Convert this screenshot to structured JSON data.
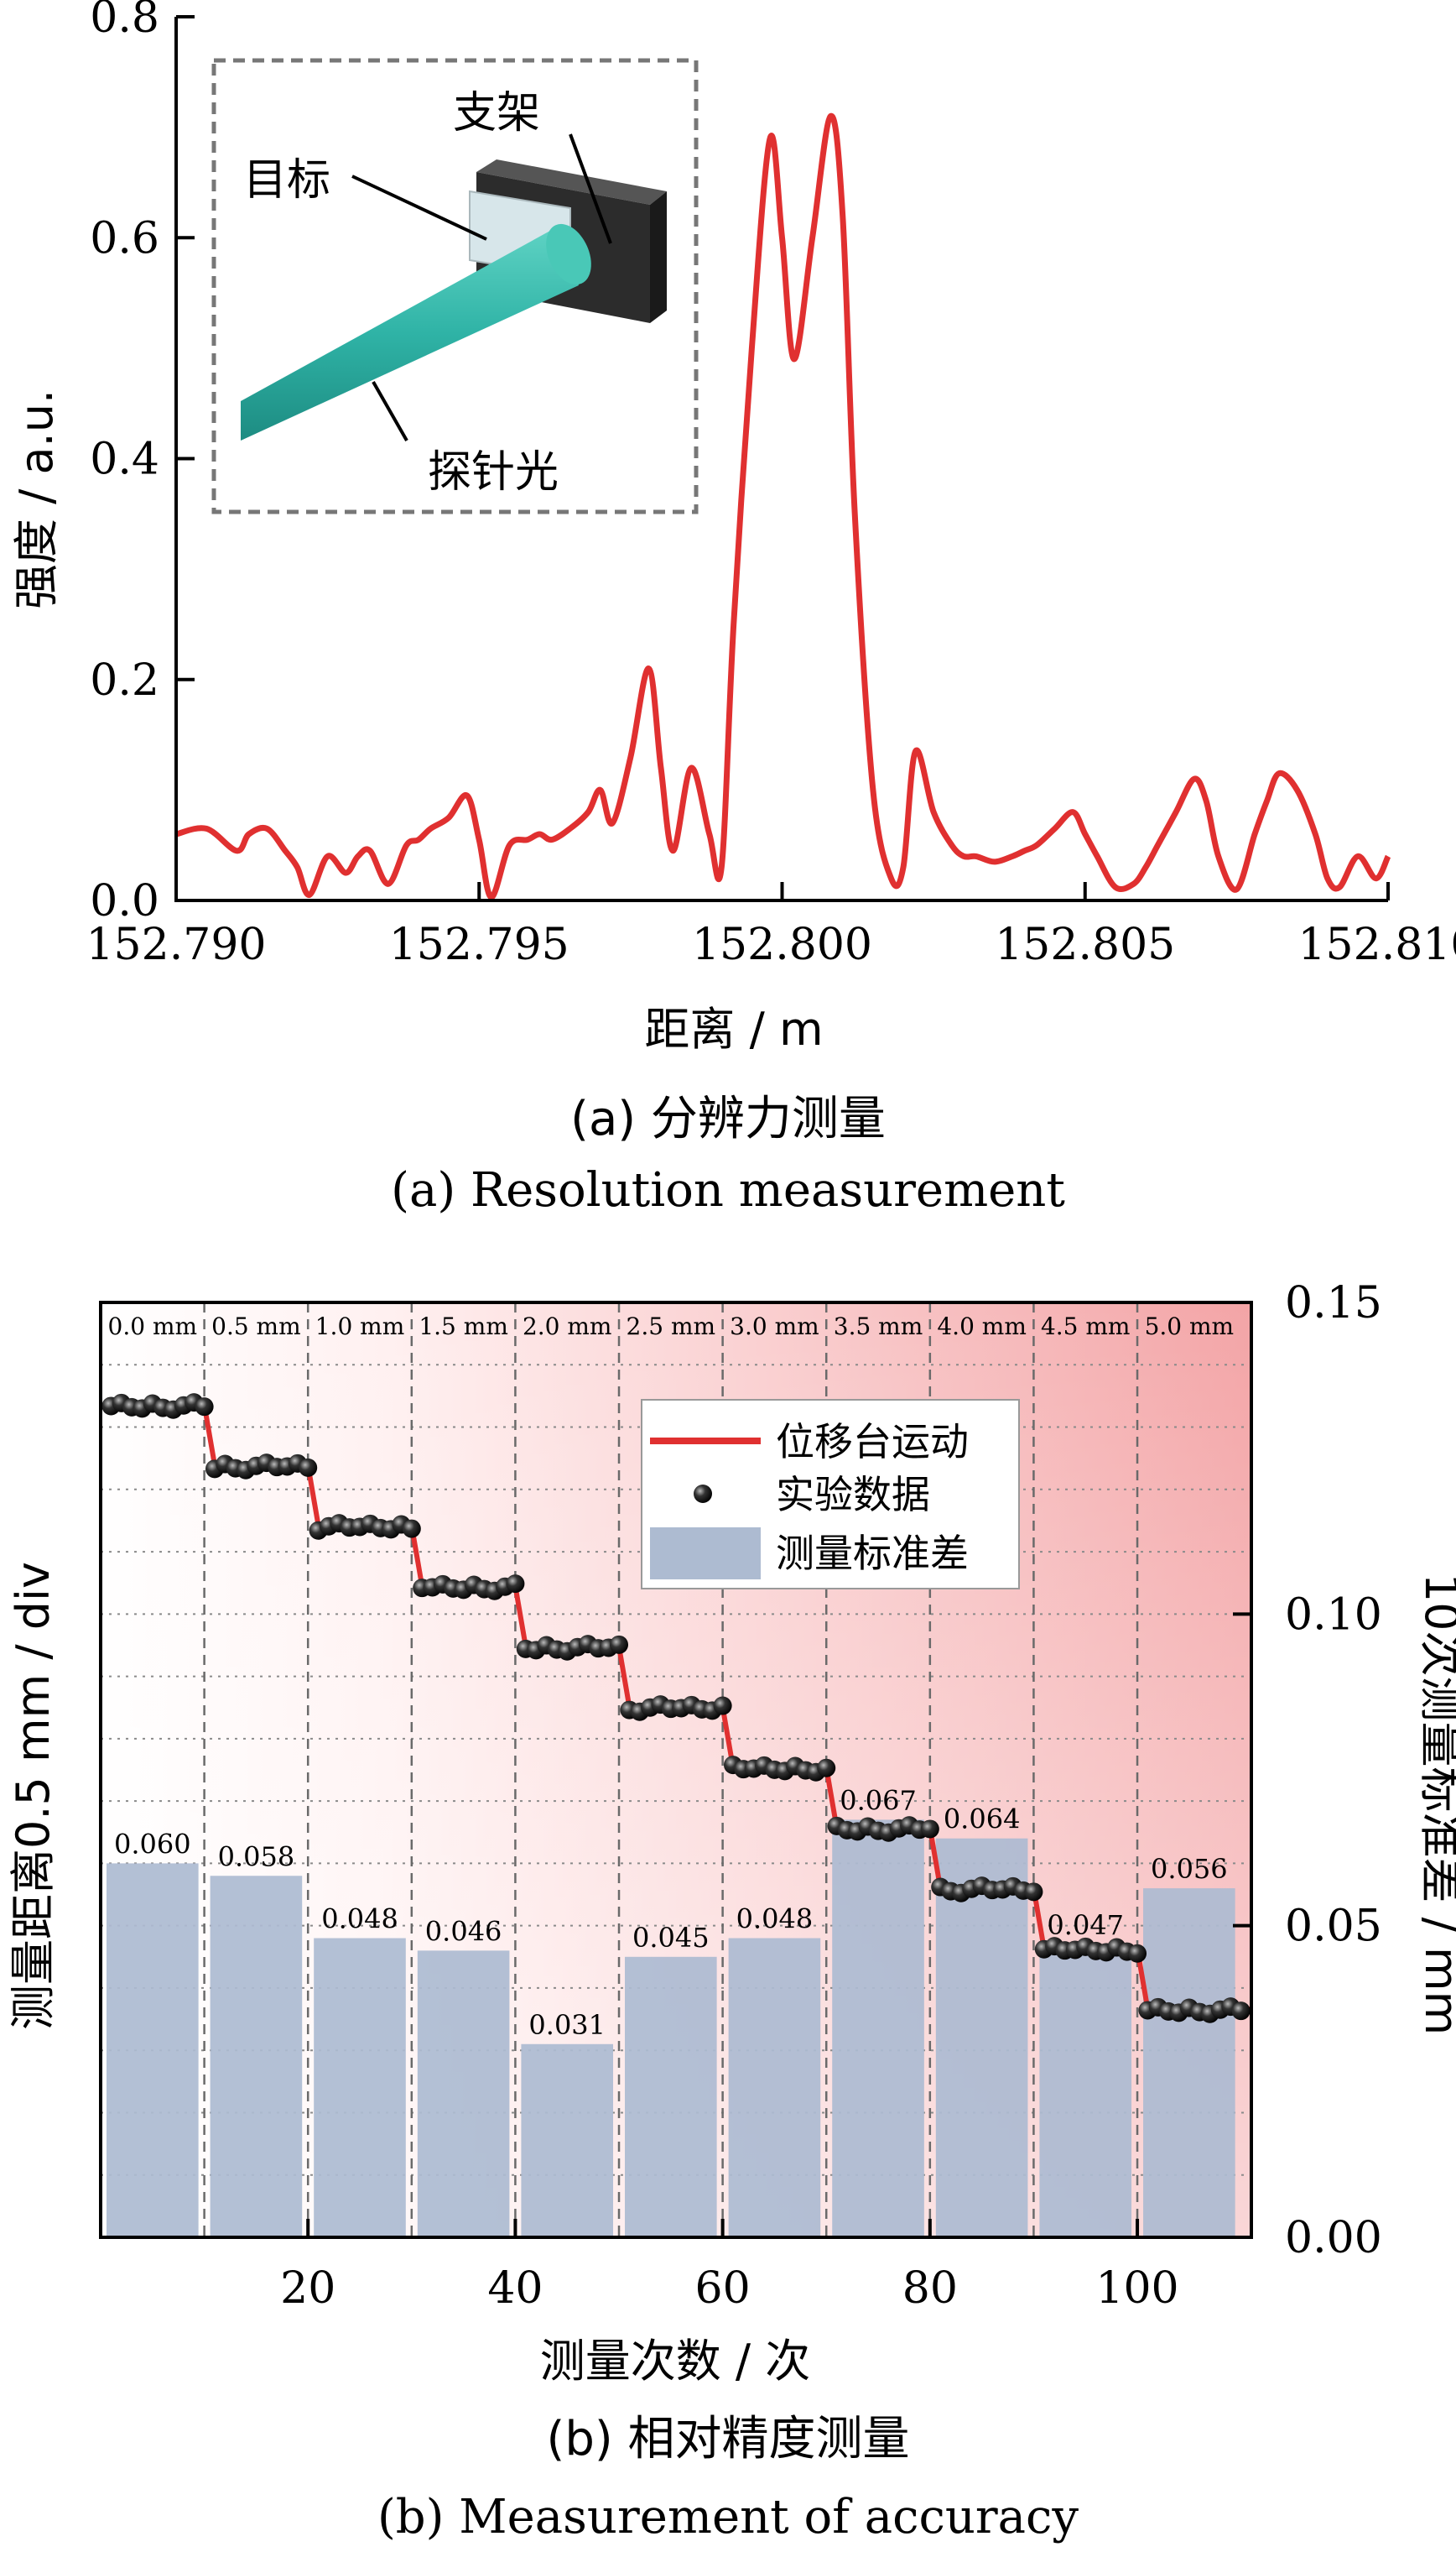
{
  "chart_data": [
    {
      "type": "line",
      "xlabel": "距离 / m",
      "ylabel": "强度 / a.u.",
      "xlim": [
        152.79,
        152.81
      ],
      "ylim": [
        0.0,
        0.8
      ],
      "xticks": [
        "152.790",
        "152.795",
        "152.800",
        "152.805",
        "152.810"
      ],
      "yticks": [
        "0.0",
        "0.2",
        "0.4",
        "0.6",
        "0.8"
      ],
      "caption_cn": "(a) 分辨力测量",
      "caption_en": "(a) Resolution measurement",
      "inset_labels": {
        "target": "目标",
        "bracket": "支架",
        "probe": "探针光"
      },
      "line_color": "#e03030",
      "series": [
        {
          "x": [
            152.79,
            152.7905,
            152.791,
            152.7912,
            152.7915,
            152.7918,
            152.792,
            152.7922,
            152.7925,
            152.7928,
            152.793,
            152.7932,
            152.7935,
            152.7938,
            152.794,
            152.7942,
            152.7945,
            152.7948,
            152.795,
            152.7952,
            152.7955,
            152.7958,
            152.796,
            152.7962,
            152.7965,
            152.7968,
            152.797,
            152.7972,
            152.7975,
            152.7978,
            152.798,
            152.7982,
            152.7985,
            152.7988,
            152.799,
            152.7992,
            152.7995,
            152.7998,
            152.8,
            152.8002,
            152.8005,
            152.8008,
            152.801,
            152.8012,
            152.8015,
            152.8018,
            152.802,
            152.8022,
            152.8025,
            152.8028,
            152.803,
            152.8032,
            152.8035,
            152.8038,
            152.804,
            152.8042,
            152.8045,
            152.8048,
            152.805,
            152.8052,
            152.8055,
            152.8058,
            152.806,
            152.8062,
            152.8065,
            152.8068,
            152.807,
            152.8072,
            152.8075,
            152.8078,
            152.808,
            152.8082,
            152.8085,
            152.8088,
            152.809,
            152.8092,
            152.8095,
            152.8098,
            152.81
          ],
          "values": [
            0.06,
            0.065,
            0.045,
            0.06,
            0.065,
            0.045,
            0.03,
            0.005,
            0.04,
            0.025,
            0.04,
            0.045,
            0.015,
            0.05,
            0.055,
            0.065,
            0.075,
            0.095,
            0.055,
            0.003,
            0.05,
            0.055,
            0.06,
            0.055,
            0.065,
            0.08,
            0.1,
            0.07,
            0.13,
            0.21,
            0.12,
            0.045,
            0.12,
            0.06,
            0.03,
            0.25,
            0.5,
            0.69,
            0.6,
            0.49,
            0.6,
            0.71,
            0.62,
            0.35,
            0.1,
            0.02,
            0.03,
            0.135,
            0.08,
            0.05,
            0.04,
            0.04,
            0.035,
            0.04,
            0.045,
            0.05,
            0.065,
            0.08,
            0.06,
            0.04,
            0.012,
            0.015,
            0.03,
            0.05,
            0.08,
            0.11,
            0.09,
            0.04,
            0.01,
            0.06,
            0.09,
            0.115,
            0.1,
            0.06,
            0.02,
            0.012,
            0.04,
            0.02,
            0.04
          ]
        }
      ]
    },
    {
      "type": "bar",
      "xlabel": "测量次数 / 次",
      "ylabel": "测量距离0.5 mm / div",
      "y2label": "10次测量标准差 / mm",
      "xlim": [
        0,
        111
      ],
      "y2lim": [
        0.0,
        0.15
      ],
      "xticks": [
        "20",
        "40",
        "60",
        "80",
        "100"
      ],
      "y2ticks": [
        "0.00",
        "0.05",
        "0.10",
        "0.15"
      ],
      "grid": true,
      "caption_cn": "(b) 相对精度测量",
      "caption_en": "(b) Measurement of accuracy",
      "segments": [
        "0.0 mm",
        "0.5 mm",
        "1.0 mm",
        "1.5 mm",
        "2.0 mm",
        "2.5 mm",
        "3.0 mm",
        "3.5 mm",
        "4.0 mm",
        "4.5 mm",
        "5.0 mm"
      ],
      "legend": {
        "placement": "top-center",
        "items": [
          "位移台运动",
          "实验数据",
          "测量标准差"
        ]
      },
      "colors": {
        "bar": "#adbbd1",
        "stage": "#e03030",
        "points": "#111111",
        "gradient_end": "#f3a4a6"
      },
      "series": [
        {
          "name": "测量标准差",
          "x": [
            5,
            15,
            25,
            35,
            45,
            55,
            65,
            75,
            85,
            95,
            105
          ],
          "values": [
            0.06,
            0.058,
            0.048,
            0.046,
            0.031,
            0.045,
            0.048,
            0.067,
            0.064,
            0.047,
            0.056
          ],
          "labels": [
            "0.060",
            "0.058",
            "0.048",
            "0.046",
            "0.031",
            "0.045",
            "0.048",
            "0.067",
            "0.064",
            "0.047",
            "0.056"
          ]
        },
        {
          "name": "位移台运动",
          "steps": [
            0.0,
            0.5,
            1.0,
            1.5,
            2.0,
            2.5,
            3.0,
            3.5,
            4.0,
            4.5,
            5.0
          ]
        },
        {
          "name": "实验数据",
          "offsets": [
            0.02,
            -0.03,
            0.04,
            0.06,
            -0.02,
            0.05,
            0.08,
            0.01,
            -0.04,
            0.03
          ]
        }
      ]
    }
  ]
}
